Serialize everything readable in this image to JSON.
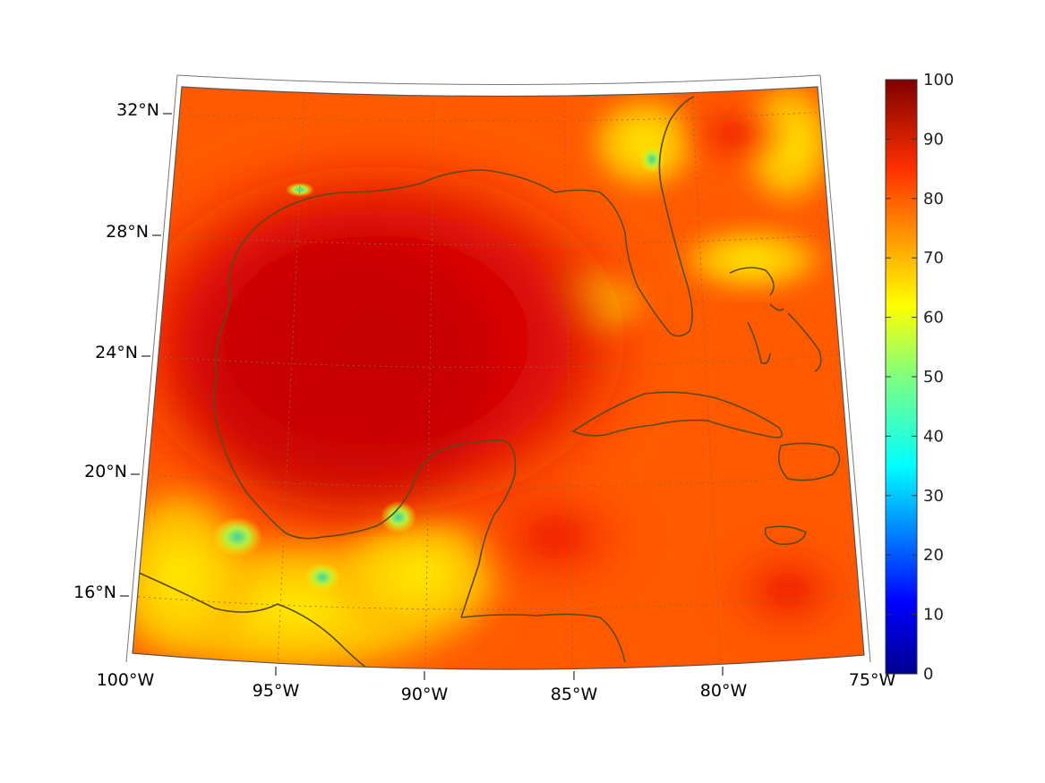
{
  "map": {
    "region": "Gulf of Mexico and Caribbean",
    "projection": "conic",
    "lon_range": [
      -100,
      -75
    ],
    "lat_range": [
      14,
      33
    ],
    "lon_ticks": [
      "100°W",
      "95°W",
      "90°W",
      "85°W",
      "80°W",
      "75°W"
    ],
    "lat_ticks": [
      "32°N",
      "28°N",
      "24°N",
      "20°N",
      "16°N"
    ],
    "coastline_color": "#5a4a1a",
    "grid": "dotted"
  },
  "colorbar": {
    "min": 0,
    "max": 100,
    "ticks": [
      "100",
      "90",
      "80",
      "70",
      "60",
      "50",
      "40",
      "30",
      "20",
      "10",
      "0"
    ],
    "colormap": "jet"
  }
}
